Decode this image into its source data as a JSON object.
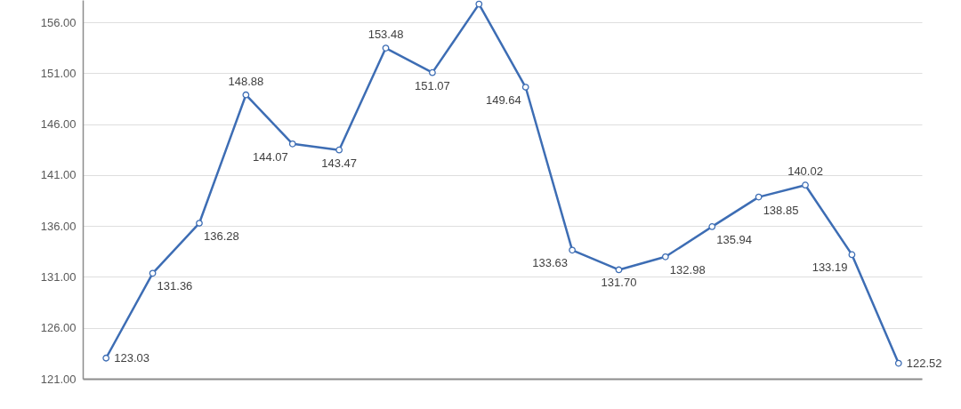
{
  "chart_data": {
    "type": "line",
    "categories": [
      null,
      null,
      null,
      null,
      null,
      null,
      null,
      null,
      null,
      null,
      null,
      null,
      null,
      null,
      null,
      null,
      null,
      null
    ],
    "series": [
      {
        "color": "#3d6db4",
        "values": [
          123.03,
          131.36,
          136.28,
          148.88,
          144.07,
          143.47,
          153.48,
          151.07,
          157.8,
          149.64,
          133.63,
          131.7,
          132.98,
          135.94,
          138.85,
          140.02,
          133.19,
          122.52
        ],
        "value_labels": [
          "123.03",
          "131.36",
          "136.28",
          "148.88",
          "144.07",
          "143.47",
          "153.48",
          "151.07",
          null,
          "149.64",
          "133.63",
          "131.70",
          "132.98",
          "135.94",
          "138.85",
          "140.02",
          "133.19",
          "122.52"
        ]
      }
    ],
    "ylim": [
      121,
      158.2
    ],
    "yticks": [
      {
        "value": 121,
        "label": "121.00"
      },
      {
        "value": 126,
        "label": "126.00"
      },
      {
        "value": 131,
        "label": "131.00"
      },
      {
        "value": 136,
        "label": "136.00"
      },
      {
        "value": 141,
        "label": "141.00"
      },
      {
        "value": 146,
        "label": "146.00"
      },
      {
        "value": 151,
        "label": "151.00"
      },
      {
        "value": 156,
        "label": "156.00"
      }
    ],
    "grid": "y",
    "marker": "circle",
    "line_style": "solid",
    "tick_labels": "y"
  }
}
